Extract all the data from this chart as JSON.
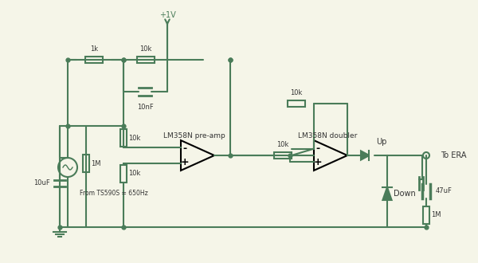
{
  "bg_color": "#f5f5e8",
  "line_color": "#4a7c59",
  "comp_color": "#4a7c59",
  "text_color": "#333333",
  "wire_lw": 1.5,
  "comp_lw": 1.5,
  "title": "",
  "labels": {
    "plus1v": "+1V",
    "r1k": "1k",
    "r10k_top": "10k",
    "c10nf": "10nF",
    "c10uf": "10uF",
    "r1m_left": "1M",
    "r10k_inv": "10k",
    "r10k_noninv": "10k",
    "opamp1_label": "LM358N pre-amp",
    "r10k_mid": "10k",
    "r10k_fb2": "10k",
    "opamp2_label": "LM358N doubler",
    "up_label": "Up",
    "down_label": "Down",
    "c47uf": "47uF",
    "r1m_right": "1M",
    "source_label": "From TS590S = 650Hz",
    "to_era": "To ERA"
  }
}
